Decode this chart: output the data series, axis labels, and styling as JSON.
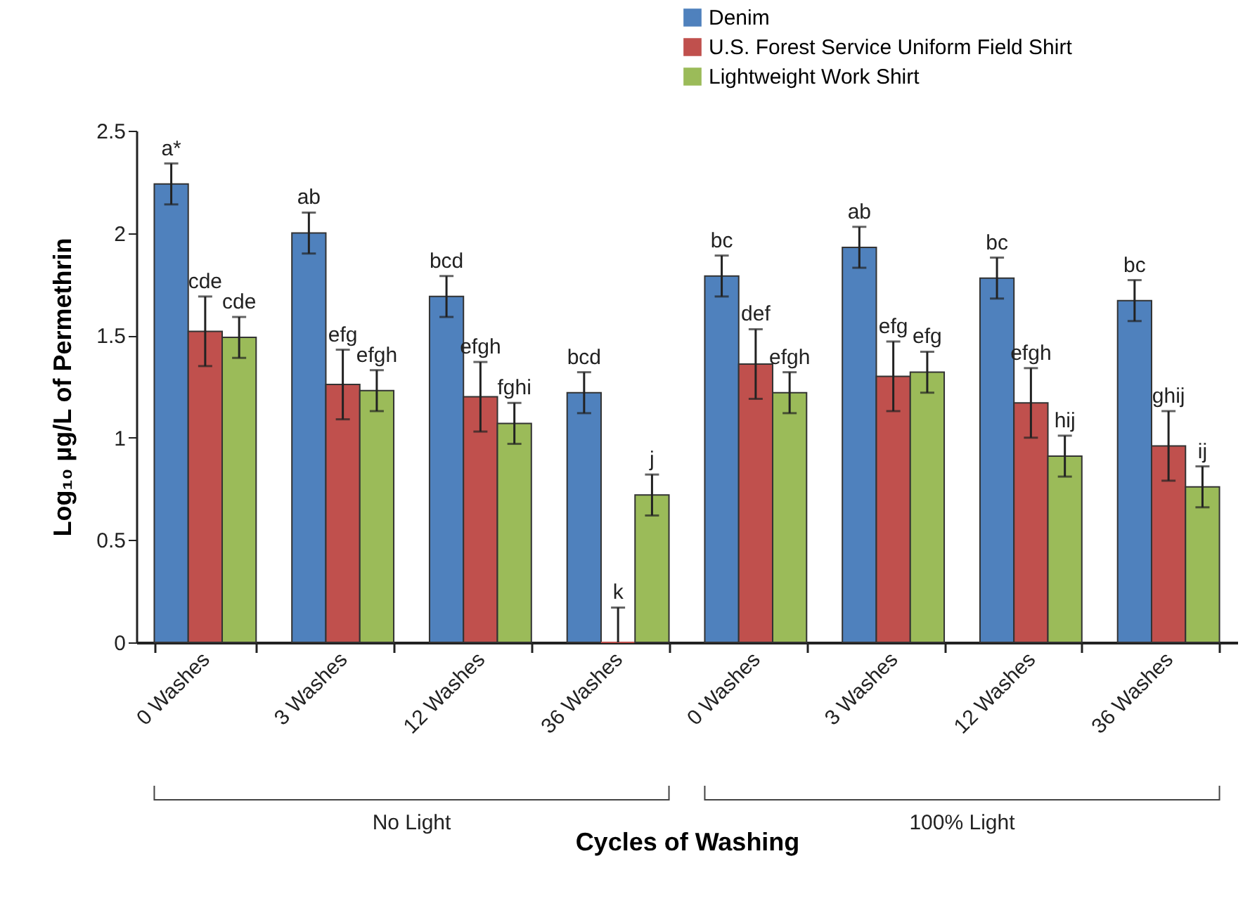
{
  "chart_data": {
    "type": "bar",
    "xlabel": "Cycles of Washing",
    "ylabel": "Log₁₀ µg/L of Permethrin",
    "categories": [
      "0 Washes",
      "3 Washes",
      "12 Washes",
      "36 Washes",
      "0 Washes",
      "3 Washes",
      "12 Washes",
      "36 Washes"
    ],
    "series": [
      {
        "name": "Denim",
        "color": "#4f81bd",
        "values": [
          2.24,
          2.0,
          1.69,
          1.22,
          1.79,
          1.93,
          1.78,
          1.67
        ],
        "errors": [
          0.1,
          0.1,
          0.1,
          0.1,
          0.1,
          0.1,
          0.1,
          0.1
        ],
        "value_labels": [
          "a*",
          "ab",
          "bcd",
          "bcd",
          "bc",
          "ab",
          "bc",
          "bc"
        ]
      },
      {
        "name": "U.S. Forest Service Uniform Field Shirt",
        "color": "#c0504d",
        "values": [
          1.52,
          1.26,
          1.2,
          0,
          1.36,
          1.3,
          1.17,
          0.96
        ],
        "errors": [
          0.17,
          0.17,
          0.17,
          [
            0,
            0.17
          ],
          0.17,
          0.17,
          0.17,
          0.17
        ],
        "value_labels": [
          "cde",
          "efg",
          "efgh",
          "k",
          "def",
          "efg",
          "efgh",
          "ghij"
        ]
      },
      {
        "name": "Lightweight Work Shirt",
        "color": "#9bbb59",
        "values": [
          1.49,
          1.23,
          1.07,
          0.72,
          1.22,
          1.32,
          0.91,
          0.76
        ],
        "errors": [
          0.1,
          0.1,
          0.1,
          0.1,
          0.1,
          0.1,
          0.1,
          0.1
        ],
        "value_labels": [
          "cde",
          "efgh",
          "fghi",
          "j",
          "efgh",
          "efg",
          "hij",
          "ij"
        ]
      }
    ],
    "ylim": [
      0,
      2.5
    ],
    "yticks": [
      0,
      0.5,
      1,
      1.5,
      2,
      2.5
    ],
    "grid": false,
    "legend": "top right",
    "annotations": [
      "No Light",
      "100% Light"
    ]
  }
}
